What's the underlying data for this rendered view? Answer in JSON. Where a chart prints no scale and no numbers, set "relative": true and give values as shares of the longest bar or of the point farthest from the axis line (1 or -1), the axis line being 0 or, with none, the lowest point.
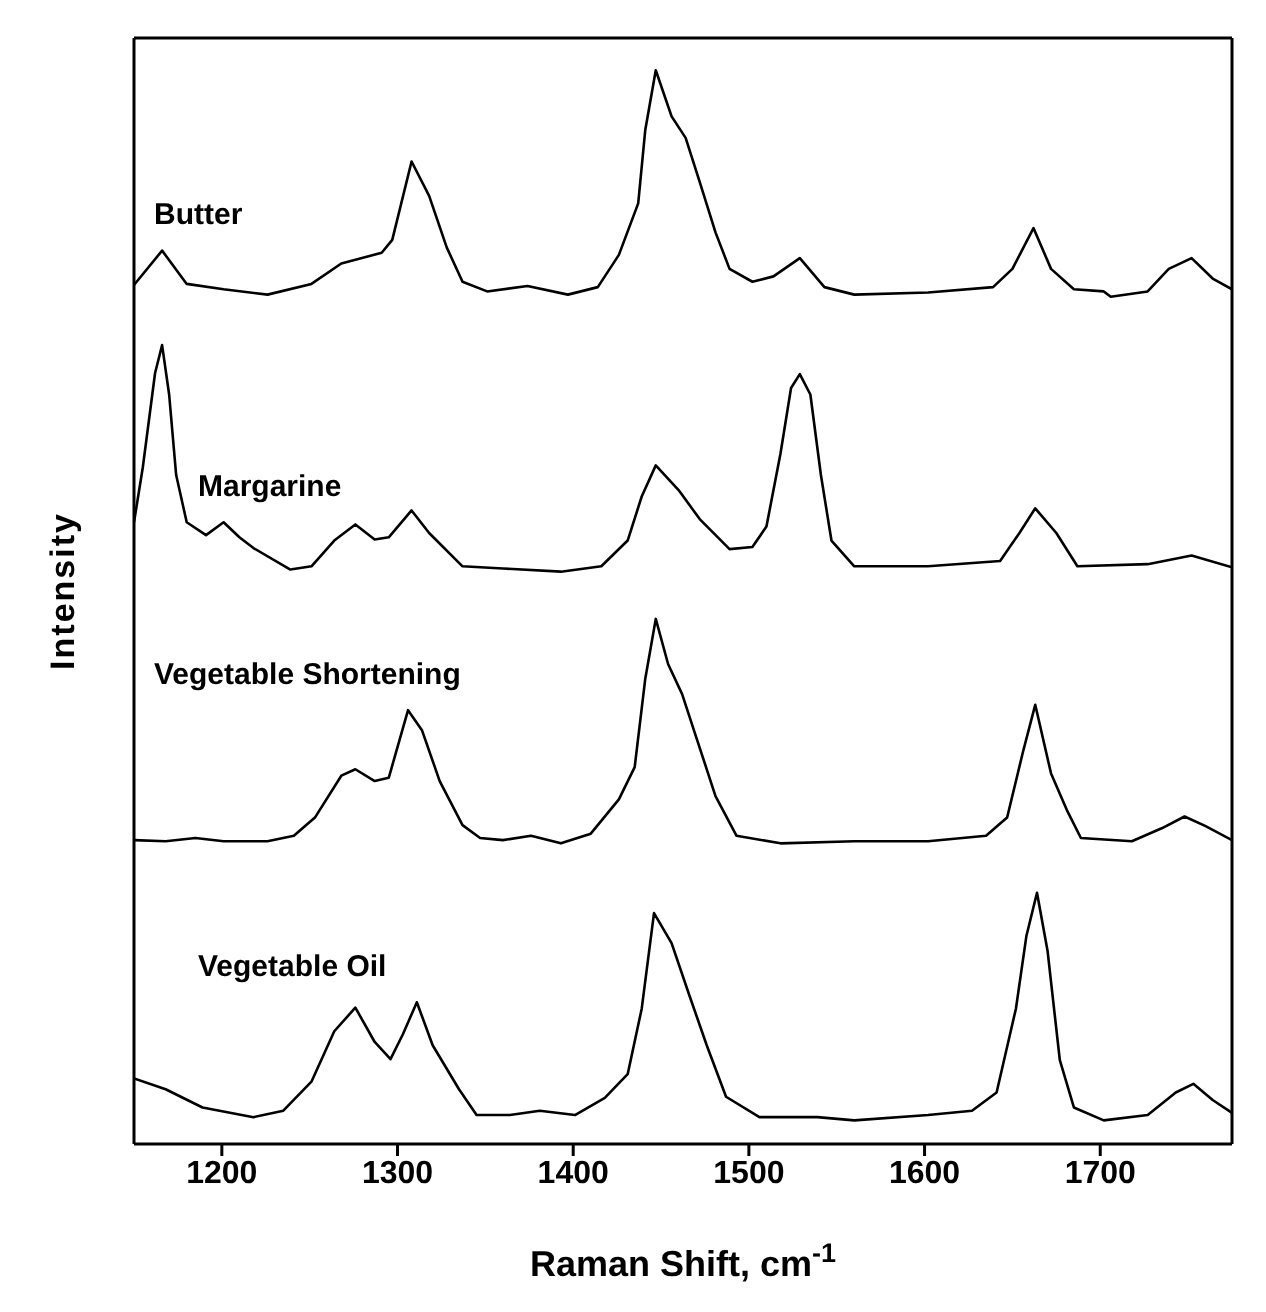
{
  "chart_data": {
    "type": "line",
    "relative": true,
    "xlabel": "Raman Shift, cm$^{-1}$",
    "ylabel": "Intensity",
    "xlim": [
      1150,
      1775
    ],
    "xticks": [
      1200,
      1300,
      1400,
      1500,
      1600,
      1700
    ],
    "series": [
      {
        "name": "Butter",
        "color": "#000000",
        "x": [
          1150,
          1166,
          1180,
          1201,
          1226,
          1251,
          1268,
          1291,
          1297,
          1308,
          1318,
          1328,
          1337,
          1351,
          1374,
          1397,
          1414,
          1426,
          1437,
          1441,
          1447,
          1456,
          1464,
          1472,
          1481,
          1489,
          1502,
          1514,
          1529,
          1543,
          1560,
          1602,
          1639,
          1650,
          1662,
          1672,
          1685,
          1702,
          1706,
          1727,
          1739,
          1752,
          1764,
          1775
        ],
        "values": [
          0.8,
          0.832,
          0.801,
          0.796,
          0.791,
          0.801,
          0.82,
          0.83,
          0.842,
          0.915,
          0.883,
          0.835,
          0.803,
          0.794,
          0.799,
          0.791,
          0.798,
          0.828,
          0.876,
          0.944,
          1.0,
          0.957,
          0.937,
          0.896,
          0.849,
          0.815,
          0.803,
          0.808,
          0.825,
          0.798,
          0.791,
          0.793,
          0.798,
          0.815,
          0.853,
          0.815,
          0.796,
          0.794,
          0.789,
          0.794,
          0.815,
          0.825,
          0.806,
          0.796
        ]
      },
      {
        "name": "Margarine",
        "color": "#000000",
        "x": [
          1150,
          1155,
          1162,
          1166,
          1170,
          1174,
          1180,
          1191,
          1201,
          1210,
          1218,
          1239,
          1251,
          1264,
          1276,
          1287,
          1295,
          1308,
          1318,
          1337,
          1360,
          1393,
          1416,
          1431,
          1439,
          1447,
          1460,
          1472,
          1489,
          1502,
          1510,
          1518,
          1524,
          1529,
          1535,
          1541,
          1547,
          1560,
          1602,
          1643,
          1654,
          1663,
          1675,
          1687,
          1727,
          1752,
          1775
        ],
        "values": [
          0.579,
          0.63,
          0.718,
          0.744,
          0.698,
          0.623,
          0.579,
          0.567,
          0.579,
          0.565,
          0.555,
          0.535,
          0.538,
          0.562,
          0.577,
          0.563,
          0.565,
          0.59,
          0.569,
          0.538,
          0.536,
          0.533,
          0.538,
          0.562,
          0.603,
          0.632,
          0.609,
          0.582,
          0.554,
          0.556,
          0.575,
          0.643,
          0.704,
          0.717,
          0.698,
          0.623,
          0.562,
          0.538,
          0.538,
          0.543,
          0.569,
          0.592,
          0.569,
          0.538,
          0.54,
          0.548,
          0.537
        ]
      },
      {
        "name": "Vegetable Shortening",
        "color": "#000000",
        "x": [
          1150,
          1168,
          1185,
          1201,
          1226,
          1241,
          1253,
          1268,
          1276,
          1287,
          1295,
          1306,
          1314,
          1324,
          1337,
          1347,
          1360,
          1376,
          1393,
          1410,
          1426,
          1435,
          1441,
          1447,
          1454,
          1462,
          1470,
          1481,
          1493,
          1518,
          1560,
          1602,
          1635,
          1647,
          1656,
          1663,
          1672,
          1681,
          1689,
          1718,
          1735,
          1748,
          1760,
          1775
        ],
        "values": [
          0.283,
          0.282,
          0.285,
          0.282,
          0.282,
          0.287,
          0.304,
          0.343,
          0.349,
          0.338,
          0.341,
          0.404,
          0.385,
          0.338,
          0.297,
          0.285,
          0.283,
          0.287,
          0.28,
          0.289,
          0.321,
          0.351,
          0.433,
          0.489,
          0.447,
          0.419,
          0.379,
          0.324,
          0.287,
          0.28,
          0.282,
          0.282,
          0.287,
          0.304,
          0.365,
          0.409,
          0.345,
          0.311,
          0.285,
          0.282,
          0.294,
          0.305,
          0.296,
          0.283
        ]
      },
      {
        "name": "Vegetable Oil",
        "color": "#000000",
        "x": [
          1150,
          1168,
          1189,
          1218,
          1235,
          1251,
          1264,
          1276,
          1287,
          1296,
          1303,
          1311,
          1320,
          1335,
          1345,
          1364,
          1381,
          1401,
          1418,
          1431,
          1439,
          1446,
          1456,
          1466,
          1476,
          1487,
          1506,
          1539,
          1560,
          1602,
          1627,
          1641,
          1652,
          1658,
          1664,
          1670,
          1677,
          1685,
          1702,
          1727,
          1743,
          1753,
          1764,
          1775
        ],
        "values": [
          0.061,
          0.051,
          0.034,
          0.025,
          0.031,
          0.058,
          0.105,
          0.127,
          0.095,
          0.079,
          0.102,
          0.132,
          0.092,
          0.051,
          0.027,
          0.027,
          0.031,
          0.027,
          0.043,
          0.065,
          0.126,
          0.215,
          0.187,
          0.139,
          0.092,
          0.044,
          0.025,
          0.025,
          0.022,
          0.027,
          0.031,
          0.048,
          0.126,
          0.194,
          0.234,
          0.18,
          0.078,
          0.034,
          0.022,
          0.027,
          0.048,
          0.056,
          0.041,
          0.029
        ]
      }
    ]
  }
}
